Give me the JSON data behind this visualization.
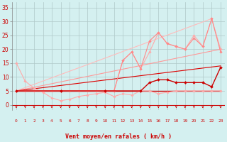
{
  "background_color": "#d4f0f0",
  "grid_color": "#b0c8c8",
  "xlabel": "Vent moyen/en rafales ( km/h )",
  "xlabel_fontsize": 6,
  "ylabel_ticks": [
    0,
    5,
    10,
    15,
    20,
    25,
    30,
    35
  ],
  "xlim": [
    -0.5,
    23.5
  ],
  "ylim": [
    -2,
    37
  ],
  "xticks": [
    0,
    1,
    2,
    3,
    4,
    5,
    6,
    7,
    8,
    9,
    10,
    11,
    12,
    13,
    14,
    15,
    16,
    17,
    18,
    19,
    20,
    21,
    22,
    23
  ],
  "series": [
    {
      "x": [
        0,
        1,
        2,
        3,
        4,
        5,
        6,
        7,
        8,
        9,
        10,
        11,
        12,
        13,
        14,
        15,
        16,
        17,
        18,
        19,
        20,
        21,
        22,
        23
      ],
      "y": [
        5,
        5,
        5,
        5,
        5,
        5,
        5,
        5,
        5,
        5,
        5,
        5,
        16,
        19,
        13,
        19,
        26,
        22,
        21,
        20,
        25,
        21,
        31,
        20
      ],
      "color": "#ffaaaa",
      "lw": 0.8,
      "marker": "D",
      "ms": 1.8
    },
    {
      "x": [
        0,
        22
      ],
      "y": [
        5,
        31
      ],
      "color": "#ffbbbb",
      "lw": 0.8,
      "marker": null,
      "ms": 0
    },
    {
      "x": [
        0,
        1,
        2,
        3,
        4,
        5,
        6,
        7,
        8,
        9,
        10,
        11,
        12,
        13,
        14,
        15,
        16,
        17,
        18,
        19,
        20,
        21,
        22,
        23
      ],
      "y": [
        15,
        8.5,
        6,
        4.5,
        2.5,
        1.5,
        2,
        3,
        3.5,
        4,
        4.5,
        3,
        4,
        3.5,
        5,
        5,
        4,
        4.5,
        5,
        5,
        5,
        5,
        5,
        5
      ],
      "color": "#ffaaaa",
      "lw": 0.8,
      "marker": "D",
      "ms": 1.8
    },
    {
      "x": [
        0,
        23
      ],
      "y": [
        5,
        20
      ],
      "color": "#ff9999",
      "lw": 0.8,
      "marker": null,
      "ms": 0
    },
    {
      "x": [
        0,
        5,
        10,
        11,
        12,
        13,
        14,
        15,
        16,
        17,
        18,
        19,
        20,
        21,
        22,
        23
      ],
      "y": [
        5,
        5,
        5,
        5,
        16,
        19,
        13,
        23,
        26,
        22,
        21,
        20,
        24,
        21,
        31,
        19
      ],
      "color": "#ff8888",
      "lw": 0.8,
      "marker": "D",
      "ms": 1.8
    },
    {
      "x": [
        0,
        23
      ],
      "y": [
        5,
        5
      ],
      "color": "#cc0000",
      "lw": 1.0,
      "marker": null,
      "ms": 0
    },
    {
      "x": [
        0,
        5,
        10,
        14,
        15,
        16,
        17,
        18,
        19,
        20,
        21,
        22,
        23
      ],
      "y": [
        5,
        5,
        5,
        5,
        8,
        9,
        9,
        8,
        8,
        8,
        8,
        6.5,
        13.5
      ],
      "color": "#cc0000",
      "lw": 1.0,
      "marker": "D",
      "ms": 2.0
    },
    {
      "x": [
        0,
        23
      ],
      "y": [
        5,
        14
      ],
      "color": "#dd0000",
      "lw": 0.8,
      "marker": null,
      "ms": 0
    }
  ]
}
